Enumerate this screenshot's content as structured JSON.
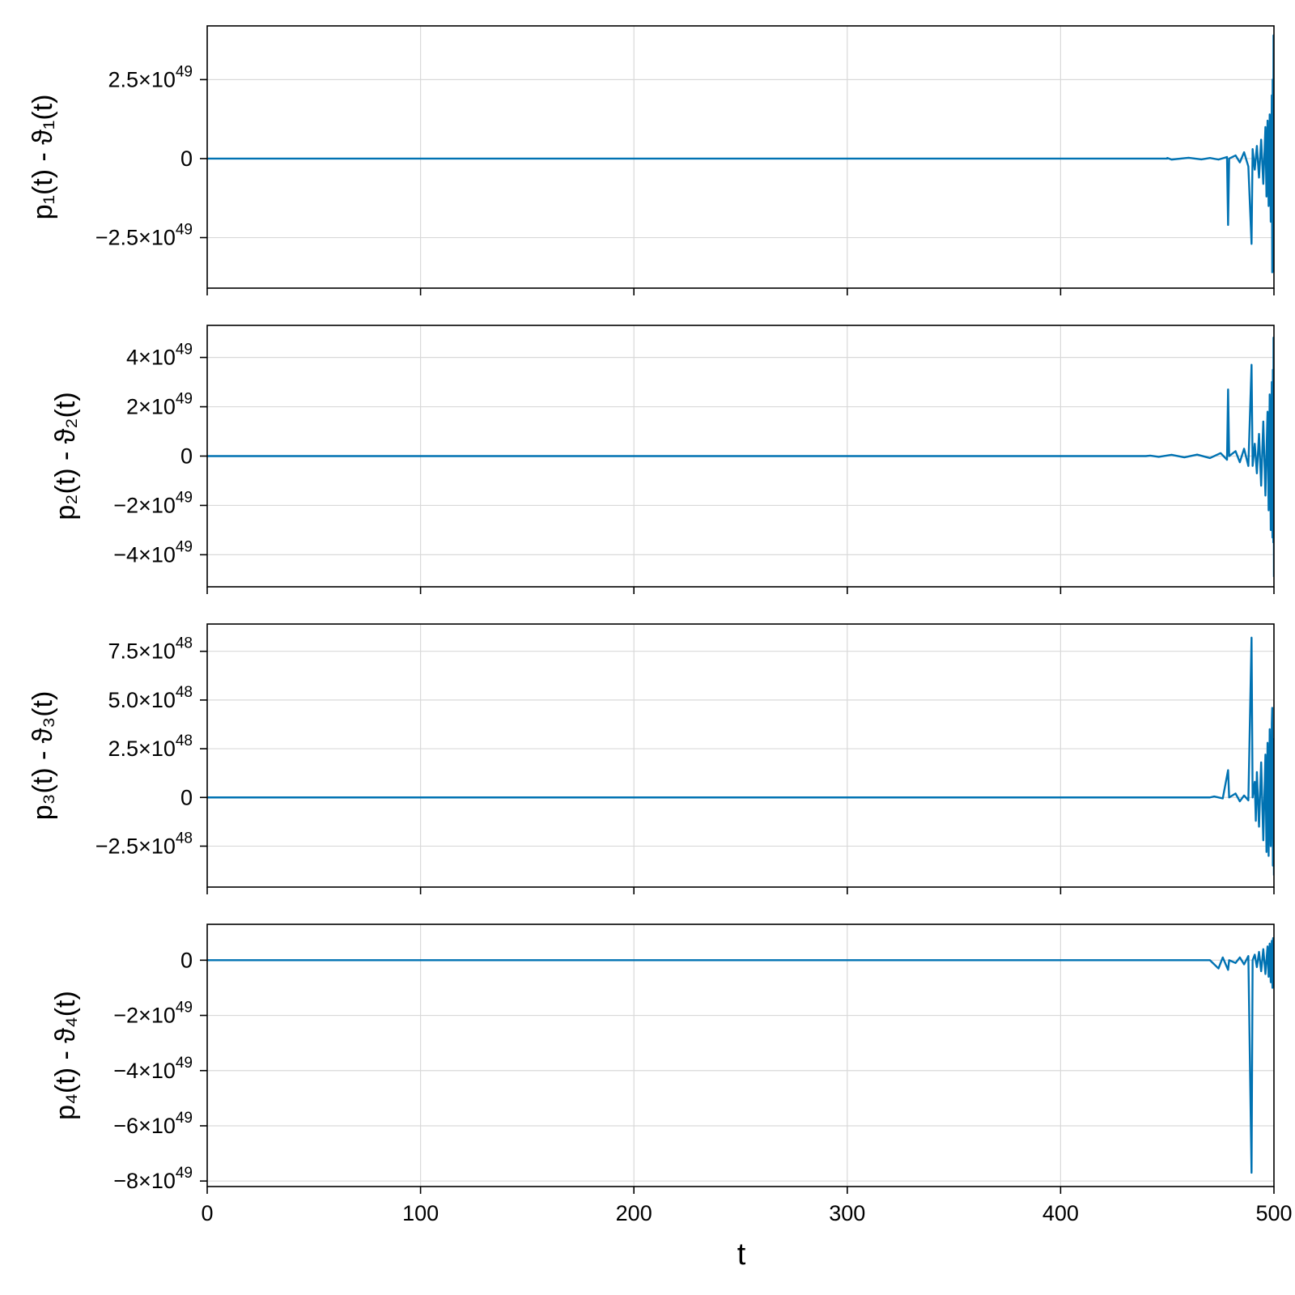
{
  "figure": {
    "xlabel": "t",
    "line_color": "#0072b2"
  },
  "chart_data": [
    {
      "type": "line",
      "ylabel": "p₁(t) - ϑ₁(t)",
      "xlim": [
        0,
        500
      ],
      "ylim": [
        -4.1e+49,
        4.2e+49
      ],
      "x_ticks": [
        0,
        100,
        200,
        300,
        400,
        500
      ],
      "show_x_tick_labels": false,
      "y_ticks": [
        {
          "value": -2.5e+49,
          "mantissa": "−2.5×10",
          "exp": "49"
        },
        {
          "value": 0,
          "mantissa": "0",
          "exp": ""
        },
        {
          "value": 2.5e+49,
          "mantissa": "2.5×10",
          "exp": "49"
        }
      ],
      "grid": true,
      "series": [
        {
          "points": [
            [
              0,
              0
            ],
            [
              450,
              0
            ],
            [
              450,
              2e+47
            ],
            [
              452,
              -3e+47
            ],
            [
              460,
              2.5e+47
            ],
            [
              466,
              -2.5e+47
            ],
            [
              470,
              2e+47
            ],
            [
              474,
              -3e+47
            ],
            [
              478,
              5e+47
            ],
            [
              478.5,
              -2.1e+49
            ],
            [
              479,
              0
            ],
            [
              482,
              1e+48
            ],
            [
              484,
              -1.2e+48
            ],
            [
              486,
              2e+48
            ],
            [
              488,
              -2.5e+48
            ],
            [
              489.5,
              -2.7e+49
            ],
            [
              490,
              3e+48
            ],
            [
              491,
              -3.5e+48
            ],
            [
              492,
              4e+48
            ],
            [
              493,
              -6e+48
            ],
            [
              494,
              6e+48
            ],
            [
              495,
              -8e+48
            ],
            [
              496,
              1e+49
            ],
            [
              496.5,
              -1.2e+49
            ],
            [
              497,
              1.2e+49
            ],
            [
              497.5,
              -1.5e+49
            ],
            [
              498,
              1.4e+49
            ],
            [
              498.5,
              -2e+49
            ],
            [
              499,
              2e+49
            ],
            [
              499.2,
              -3.6e+49
            ],
            [
              499.4,
              2.5e+49
            ],
            [
              499.6,
              -2.5e+49
            ],
            [
              499.8,
              3.9e+49
            ],
            [
              500,
              -3.6e+49
            ]
          ]
        }
      ]
    },
    {
      "type": "line",
      "ylabel": "p₂(t) - ϑ₂(t)",
      "xlim": [
        0,
        500
      ],
      "ylim": [
        -5.3e+49,
        5.3e+49
      ],
      "x_ticks": [
        0,
        100,
        200,
        300,
        400,
        500
      ],
      "show_x_tick_labels": false,
      "y_ticks": [
        {
          "value": -4e+49,
          "mantissa": "−4×10",
          "exp": "49"
        },
        {
          "value": -2e+49,
          "mantissa": "−2×10",
          "exp": "49"
        },
        {
          "value": 0,
          "mantissa": "0",
          "exp": ""
        },
        {
          "value": 2e+49,
          "mantissa": "2×10",
          "exp": "49"
        },
        {
          "value": 4e+49,
          "mantissa": "4×10",
          "exp": "49"
        }
      ],
      "grid": true,
      "series": [
        {
          "points": [
            [
              0,
              0
            ],
            [
              440,
              0
            ],
            [
              442,
              2e+47
            ],
            [
              446,
              -3e+47
            ],
            [
              452,
              5e+47
            ],
            [
              458,
              -5e+47
            ],
            [
              464,
              6e+47
            ],
            [
              470,
              -8e+47
            ],
            [
              475,
              1.2e+48
            ],
            [
              478,
              -1.5e+48
            ],
            [
              478.5,
              2.7e+49
            ],
            [
              479,
              0
            ],
            [
              482,
              2e+48
            ],
            [
              484,
              -2.5e+48
            ],
            [
              486,
              3e+48
            ],
            [
              488,
              -4e+48
            ],
            [
              489.5,
              3.7e+49
            ],
            [
              490,
              -4e+48
            ],
            [
              491,
              5e+48
            ],
            [
              492,
              -7e+48
            ],
            [
              493,
              9e+48
            ],
            [
              494,
              -1.2e+49
            ],
            [
              495,
              1.4e+49
            ],
            [
              496,
              -1.6e+49
            ],
            [
              497,
              1.8e+49
            ],
            [
              497.5,
              -2.2e+49
            ],
            [
              498,
              2.5e+49
            ],
            [
              498.5,
              -3e+49
            ],
            [
              499,
              3e+49
            ],
            [
              499.3,
              -3.3e+49
            ],
            [
              499.5,
              3.5e+49
            ],
            [
              499.7,
              -3.5e+49
            ],
            [
              499.8,
              4.8e+49
            ],
            [
              500,
              -4.9e+49
            ]
          ]
        }
      ]
    },
    {
      "type": "line",
      "ylabel": "p₃(t) - ϑ₃(t)",
      "xlim": [
        0,
        500
      ],
      "ylim": [
        -4.6e+48,
        8.9e+48
      ],
      "x_ticks": [
        0,
        100,
        200,
        300,
        400,
        500
      ],
      "show_x_tick_labels": false,
      "y_ticks": [
        {
          "value": -2.5e+48,
          "mantissa": "−2.5×10",
          "exp": "48"
        },
        {
          "value": 0,
          "mantissa": "0",
          "exp": ""
        },
        {
          "value": 2.5e+48,
          "mantissa": "2.5×10",
          "exp": "48"
        },
        {
          "value": 5e+48,
          "mantissa": "5.0×10",
          "exp": "48"
        },
        {
          "value": 7.5e+48,
          "mantissa": "7.5×10",
          "exp": "48"
        }
      ],
      "grid": true,
      "series": [
        {
          "points": [
            [
              0,
              0
            ],
            [
              470,
              0
            ],
            [
              472,
              5e+46
            ],
            [
              476,
              -5e+46
            ],
            [
              478.5,
              1.4e+48
            ],
            [
              479,
              0
            ],
            [
              482,
              2e+47
            ],
            [
              484,
              -2e+47
            ],
            [
              486,
              1e+47
            ],
            [
              488,
              -1.5e+47
            ],
            [
              489.5,
              8.2e+48
            ],
            [
              490,
              0
            ],
            [
              491,
              8e+47
            ],
            [
              491.5,
              -1.2e+48
            ],
            [
              492,
              1.3e+48
            ],
            [
              493,
              -1.5e+48
            ],
            [
              494,
              1.8e+48
            ],
            [
              495,
              -2.2e+48
            ],
            [
              496,
              2.2e+48
            ],
            [
              496.5,
              -2.8e+48
            ],
            [
              497,
              2.8e+48
            ],
            [
              497.5,
              -3e+48
            ],
            [
              498,
              3.5e+48
            ],
            [
              498.5,
              -2.5e+48
            ],
            [
              499,
              3.8e+48
            ],
            [
              499.2,
              4.6e+48
            ],
            [
              499.5,
              -3.5e+48
            ],
            [
              499.7,
              3e+48
            ],
            [
              500,
              -4e+48
            ]
          ]
        }
      ]
    },
    {
      "type": "line",
      "ylabel": "p₄(t) - ϑ₄(t)",
      "xlim": [
        0,
        500
      ],
      "ylim": [
        -8.2e+49,
        1.3e+49
      ],
      "x_ticks": [
        0,
        100,
        200,
        300,
        400,
        500
      ],
      "show_x_tick_labels": true,
      "y_ticks": [
        {
          "value": -8e+49,
          "mantissa": "−8×10",
          "exp": "49"
        },
        {
          "value": -6e+49,
          "mantissa": "−6×10",
          "exp": "49"
        },
        {
          "value": -4e+49,
          "mantissa": "−4×10",
          "exp": "49"
        },
        {
          "value": -2e+49,
          "mantissa": "−2×10",
          "exp": "49"
        },
        {
          "value": 0,
          "mantissa": "0",
          "exp": ""
        }
      ],
      "grid": true,
      "series": [
        {
          "points": [
            [
              0,
              0
            ],
            [
              470,
              0
            ],
            [
              474,
              -3e+48
            ],
            [
              476,
              1e+48
            ],
            [
              478.5,
              -3.5e+48
            ],
            [
              479,
              0
            ],
            [
              482,
              -1e+48
            ],
            [
              484,
              1e+48
            ],
            [
              486,
              -1.5e+48
            ],
            [
              488,
              1.5e+48
            ],
            [
              489.5,
              -7.7e+49
            ],
            [
              490,
              0
            ],
            [
              491,
              2e+48
            ],
            [
              492,
              -2.5e+48
            ],
            [
              493,
              3e+48
            ],
            [
              494,
              -4e+48
            ],
            [
              495,
              4e+48
            ],
            [
              496,
              -5e+48
            ],
            [
              497,
              5e+48
            ],
            [
              497.5,
              -6e+48
            ],
            [
              498,
              6e+48
            ],
            [
              498.5,
              -8e+48
            ],
            [
              499,
              7e+48
            ],
            [
              499.3,
              -1e+49
            ],
            [
              499.6,
              8e+48
            ],
            [
              500,
              -1e+49
            ]
          ]
        }
      ]
    }
  ]
}
